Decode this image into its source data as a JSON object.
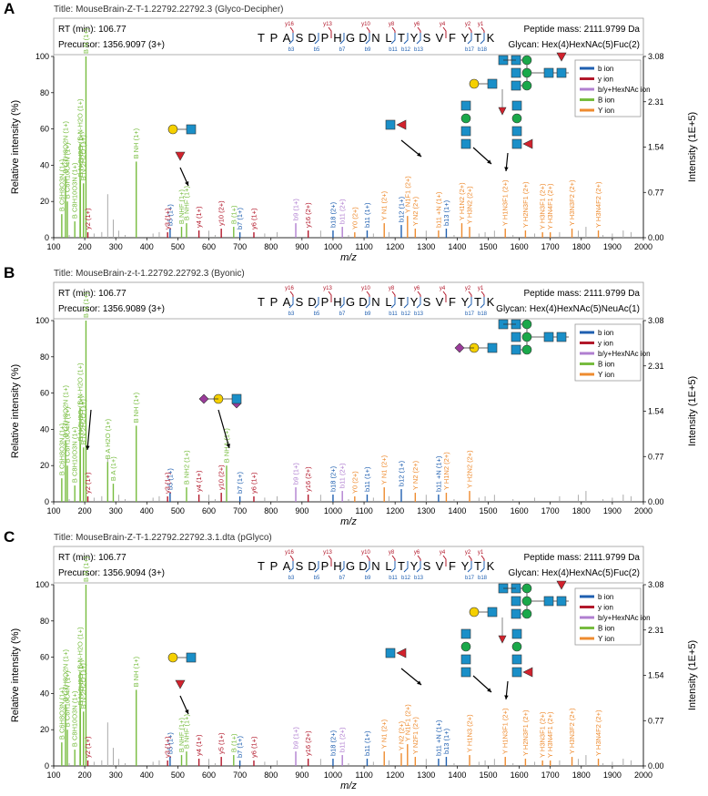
{
  "colors": {
    "b_ion": "#1f5fb0",
    "y_ion": "#b2182b",
    "by_hexnac_ion": "#b07fd0",
    "B_ion": "#77bc3f",
    "Y_ion": "#ee8b2f",
    "unmatched": "#aaaaaa",
    "gray": "#999999",
    "glcnac_square": "#1a8fc8",
    "mannose_circle": "#1aa84a",
    "galactose_circle": "#f5d000",
    "fucose_triangle": "#d2222d",
    "neuac_diamond": "#9b3b9b"
  },
  "chart_data": [
    {
      "type": "bar",
      "panel": "A",
      "title": "Title: MouseBrain-Z-T-1.22792.22792.3 (Glyco-Decipher)",
      "rt": "RT (min): 106.77",
      "precursor": "Precursor: 1356.9097 (3+)",
      "peptide_mass": "Peptide mass: 2111.9799 Da",
      "glycan": "Glycan: Hex(4)HexNAc(5)Fuc(2)",
      "sequence": [
        "T",
        "P",
        "A",
        "S",
        "D",
        "P",
        "H",
        "G",
        "D",
        "N",
        "L",
        "T",
        "Y",
        "S",
        "V",
        "F",
        "Y",
        "T",
        "K"
      ],
      "y_fragment_labels": [
        "y16",
        "y13",
        "y10",
        "y8",
        "y6",
        "y4",
        "y2",
        "y1"
      ],
      "b_fragment_labels": [
        "b3",
        "b5",
        "b7",
        "b9",
        "b11",
        "b12",
        "b13",
        "b17",
        "b18"
      ],
      "xlabel": "m/z",
      "ylabel": "Relative intensity (%)",
      "y2label": "Intensity (1E+5)",
      "xlim": [
        100,
        2000
      ],
      "ylim": [
        0,
        100
      ],
      "x_ticks": [
        100,
        200,
        300,
        400,
        500,
        600,
        700,
        800,
        900,
        1000,
        1100,
        1200,
        1300,
        1400,
        1500,
        1600,
        1700,
        1800,
        1900,
        2000
      ],
      "y_ticks": [
        0,
        20,
        40,
        60,
        80,
        100
      ],
      "y2_ticks": [
        "0.00",
        "0.77",
        "1.54",
        "2.31",
        "3.08"
      ],
      "legend": [
        "b ion",
        "y ion",
        "b/y+HexNAc ion",
        "B ion",
        "Y ion"
      ],
      "legend_position": "top-right",
      "peaks": [
        {
          "mz": 126,
          "i": 13,
          "t": "B",
          "label": "B C6H8O3N (1+)"
        },
        {
          "mz": 138,
          "i": 34,
          "t": "B",
          "label": "B C7H8O2N (1+)"
        },
        {
          "mz": 144,
          "i": 20,
          "t": "B",
          "label": "B C6H10O4N (1+)"
        },
        {
          "mz": 168,
          "i": 9,
          "t": "B",
          "label": "B C8H10O3N (1+)"
        },
        {
          "mz": 186,
          "i": 32,
          "t": "B",
          "label": "B N-2H2O (1+)"
        },
        {
          "mz": 204,
          "i": 100,
          "t": "B",
          "label": "B N (1+)"
        },
        {
          "mz": 274,
          "i": 24,
          "t": "u",
          "label": ""
        },
        {
          "mz": 292,
          "i": 10,
          "t": "u",
          "label": ""
        },
        {
          "mz": 366,
          "i": 42,
          "t": "B",
          "label": "B NH (1+)"
        },
        {
          "mz": 185,
          "i": 52,
          "t": "B",
          "label": "B N-H2O (1+)"
        },
        {
          "mz": 196,
          "i": 30,
          "t": "B",
          "label": "B N-2H2O (1+)"
        },
        {
          "mz": 210,
          "i": 3,
          "t": "y",
          "label": "y2 (1+)"
        },
        {
          "mz": 475,
          "i": 5,
          "t": "b",
          "label": "b5 (1+)"
        },
        {
          "mz": 467,
          "i": 3,
          "t": "y",
          "label": "y3 (1+)"
        },
        {
          "mz": 512,
          "i": 6,
          "t": "B",
          "label": "B NHF (1+)"
        },
        {
          "mz": 528,
          "i": 8,
          "t": "B",
          "label": "B NHF (1+)"
        },
        {
          "mz": 568,
          "i": 4,
          "t": "y",
          "label": "y4 (1+)"
        },
        {
          "mz": 640,
          "i": 5,
          "t": "y",
          "label": "y10 (2+)"
        },
        {
          "mz": 680,
          "i": 6,
          "t": "B",
          "label": "B (1+)"
        },
        {
          "mz": 700,
          "i": 3,
          "t": "b",
          "label": "b7 (1+)"
        },
        {
          "mz": 745,
          "i": 3,
          "t": "y",
          "label": "y6 (1+)"
        },
        {
          "mz": 880,
          "i": 8,
          "t": "p",
          "label": "b9 (1+)"
        },
        {
          "mz": 920,
          "i": 4,
          "t": "y",
          "label": "y16 (2+)"
        },
        {
          "mz": 1000,
          "i": 4,
          "t": "b",
          "label": "b18 (2+)"
        },
        {
          "mz": 1030,
          "i": 6,
          "t": "p",
          "label": "b11 (2+)"
        },
        {
          "mz": 1070,
          "i": 3,
          "t": "Y",
          "label": "Y0 (2+)"
        },
        {
          "mz": 1110,
          "i": 4,
          "t": "b",
          "label": "b11 (1+)"
        },
        {
          "mz": 1165,
          "i": 8,
          "t": "Y",
          "label": "Y N1 (2+)"
        },
        {
          "mz": 1220,
          "i": 7,
          "t": "b",
          "label": "b12 (1+)"
        },
        {
          "mz": 1240,
          "i": 12,
          "t": "Y",
          "label": "Y N1F1 (2+)"
        },
        {
          "mz": 1265,
          "i": 5,
          "t": "Y",
          "label": "Y N2 (2+)"
        },
        {
          "mz": 1340,
          "i": 4,
          "t": "Y",
          "label": "b11 +N (1+)"
        },
        {
          "mz": 1365,
          "i": 5,
          "t": "b",
          "label": "b13 (1+)"
        },
        {
          "mz": 1415,
          "i": 8,
          "t": "Y",
          "label": "Y H1N2 (2+)"
        },
        {
          "mz": 1440,
          "i": 6,
          "t": "Y",
          "label": "Y H3N2 (2+)"
        },
        {
          "mz": 1555,
          "i": 5,
          "t": "Y",
          "label": "Y H1N3F1 (2+)"
        },
        {
          "mz": 1620,
          "i": 4,
          "t": "Y",
          "label": "Y H2N3F1 (2+)"
        },
        {
          "mz": 1675,
          "i": 3,
          "t": "Y",
          "label": "Y H3N3F1 (2+)"
        },
        {
          "mz": 1700,
          "i": 3,
          "t": "Y",
          "label": "Y H3N4F1 (2+)"
        },
        {
          "mz": 1770,
          "i": 5,
          "t": "Y",
          "label": "Y H3N3F2 (2+)"
        },
        {
          "mz": 1855,
          "i": 4,
          "t": "Y",
          "label": "Y H3N4F2 (2+)"
        },
        {
          "mz": 1815,
          "i": 6,
          "t": "u",
          "label": ""
        },
        {
          "mz": 1935,
          "i": 4,
          "t": "u",
          "label": ""
        }
      ]
    },
    {
      "type": "bar",
      "panel": "B",
      "title": "Title: MouseBrain-z-t-1.22792.22792.3 (Byonic)",
      "rt": "RT (min): 106.77",
      "precursor": "Precursor: 1356.9089 (3+)",
      "peptide_mass": "Peptide mass: 2111.9799 Da",
      "glycan": "Glycan: Hex(4)HexNAc(5)NeuAc(1)",
      "sequence": [
        "T",
        "P",
        "A",
        "S",
        "D",
        "P",
        "H",
        "G",
        "D",
        "N",
        "L",
        "T",
        "Y",
        "S",
        "V",
        "F",
        "Y",
        "T",
        "K"
      ],
      "y_fragment_labels": [
        "y16",
        "y13",
        "y10",
        "y8",
        "y6",
        "y4",
        "y2",
        "y1"
      ],
      "b_fragment_labels": [
        "b3",
        "b5",
        "b7",
        "b9",
        "b11",
        "b12",
        "b13",
        "b17",
        "b18"
      ],
      "xlabel": "m/z",
      "ylabel": "Relative intensity (%)",
      "y2label": "Intensity (1E+5)",
      "xlim": [
        100,
        2000
      ],
      "ylim": [
        0,
        100
      ],
      "x_ticks": [
        100,
        200,
        300,
        400,
        500,
        600,
        700,
        800,
        900,
        1000,
        1100,
        1200,
        1300,
        1400,
        1500,
        1600,
        1700,
        1800,
        1900,
        2000
      ],
      "y_ticks": [
        0,
        20,
        40,
        60,
        80,
        100
      ],
      "y2_ticks": [
        "0.00",
        "0.77",
        "1.54",
        "2.31",
        "3.08"
      ],
      "legend": [
        "b ion",
        "y ion",
        "b/y+HexNAc ion",
        "B ion",
        "Y ion"
      ],
      "legend_position": "top-right",
      "peaks": [
        {
          "mz": 126,
          "i": 13,
          "t": "B",
          "label": "B C6H8O3N (1+)"
        },
        {
          "mz": 138,
          "i": 34,
          "t": "B",
          "label": "B C7H8O2N (1+)"
        },
        {
          "mz": 144,
          "i": 20,
          "t": "B",
          "label": "B C6H10O4N (1+)"
        },
        {
          "mz": 168,
          "i": 9,
          "t": "B",
          "label": "B C8H10O3N (1+)"
        },
        {
          "mz": 186,
          "i": 32,
          "t": "B",
          "label": "B N-2H2O (1+)"
        },
        {
          "mz": 204,
          "i": 100,
          "t": "B",
          "label": "B N (1+)"
        },
        {
          "mz": 274,
          "i": 24,
          "t": "u",
          "label": ""
        },
        {
          "mz": 292,
          "i": 10,
          "t": "B",
          "label": "B A (1+)"
        },
        {
          "mz": 274,
          "i": 22,
          "t": "B",
          "label": "B A H2O (1+)"
        },
        {
          "mz": 366,
          "i": 42,
          "t": "B",
          "label": "B NH (1+)"
        },
        {
          "mz": 185,
          "i": 52,
          "t": "B",
          "label": "B N-H2O (1+)"
        },
        {
          "mz": 196,
          "i": 30,
          "t": "B",
          "label": "B N-2H2O (1+)"
        },
        {
          "mz": 210,
          "i": 3,
          "t": "y",
          "label": "y2 (1+)"
        },
        {
          "mz": 475,
          "i": 5,
          "t": "b",
          "label": "b5 (1+)"
        },
        {
          "mz": 467,
          "i": 3,
          "t": "y",
          "label": "y3 (1+)"
        },
        {
          "mz": 528,
          "i": 8,
          "t": "B",
          "label": "B NH2 (1+)"
        },
        {
          "mz": 568,
          "i": 4,
          "t": "y",
          "label": "y4 (1+)"
        },
        {
          "mz": 640,
          "i": 5,
          "t": "y",
          "label": "y10 (2+)"
        },
        {
          "mz": 657,
          "i": 20,
          "t": "B",
          "label": "B NHA (1+)"
        },
        {
          "mz": 700,
          "i": 3,
          "t": "b",
          "label": "b7 (1+)"
        },
        {
          "mz": 745,
          "i": 3,
          "t": "y",
          "label": "y6 (1+)"
        },
        {
          "mz": 880,
          "i": 8,
          "t": "p",
          "label": "b9 (1+)"
        },
        {
          "mz": 920,
          "i": 4,
          "t": "y",
          "label": "y16 (2+)"
        },
        {
          "mz": 1000,
          "i": 4,
          "t": "b",
          "label": "b18 (2+)"
        },
        {
          "mz": 1030,
          "i": 6,
          "t": "p",
          "label": "b11 (2+)"
        },
        {
          "mz": 1070,
          "i": 3,
          "t": "Y",
          "label": "Y0 (2+)"
        },
        {
          "mz": 1110,
          "i": 4,
          "t": "b",
          "label": "b11 (1+)"
        },
        {
          "mz": 1165,
          "i": 8,
          "t": "Y",
          "label": "Y N1 (2+)"
        },
        {
          "mz": 1220,
          "i": 7,
          "t": "b",
          "label": "b12 (1+)"
        },
        {
          "mz": 1265,
          "i": 5,
          "t": "Y",
          "label": "Y N2 (2+)"
        },
        {
          "mz": 1340,
          "i": 4,
          "t": "b",
          "label": "b11 +N (1+)"
        },
        {
          "mz": 1365,
          "i": 5,
          "t": "Y",
          "label": "Y H1N2 (2+)"
        },
        {
          "mz": 1440,
          "i": 6,
          "t": "Y",
          "label": "Y H2N2 (2+)"
        },
        {
          "mz": 1815,
          "i": 6,
          "t": "u",
          "label": ""
        },
        {
          "mz": 1935,
          "i": 4,
          "t": "u",
          "label": ""
        }
      ]
    },
    {
      "type": "bar",
      "panel": "C",
      "title": "Title: MouseBrain-Z-T-1.22792.22792.3.1.dta (pGlyco)",
      "rt": "RT (min): 106.77",
      "precursor": "Precursor: 1356.9094 (3+)",
      "peptide_mass": "Peptide mass: 2111.9799 Da",
      "glycan": "Glycan: Hex(4)HexNAc(5)Fuc(2)",
      "sequence": [
        "T",
        "P",
        "A",
        "S",
        "D",
        "P",
        "H",
        "G",
        "D",
        "N",
        "L",
        "T",
        "Y",
        "S",
        "V",
        "F",
        "Y",
        "T",
        "K"
      ],
      "y_fragment_labels": [
        "y16",
        "y13",
        "y10",
        "y8",
        "y6",
        "y4",
        "y2",
        "y1"
      ],
      "b_fragment_labels": [
        "b3",
        "b5",
        "b7",
        "b9",
        "b11",
        "b12",
        "b13",
        "b17",
        "b18"
      ],
      "xlabel": "m/z",
      "ylabel": "Relative intensity (%)",
      "y2label": "Intensity (1E+5)",
      "xlim": [
        100,
        2000
      ],
      "ylim": [
        0,
        100
      ],
      "x_ticks": [
        100,
        200,
        300,
        400,
        500,
        600,
        700,
        800,
        900,
        1000,
        1100,
        1200,
        1300,
        1400,
        1500,
        1600,
        1700,
        1800,
        1900,
        2000
      ],
      "y_ticks": [
        0,
        20,
        40,
        60,
        80,
        100
      ],
      "y2_ticks": [
        "0.00",
        "0.77",
        "1.54",
        "2.31",
        "3.08"
      ],
      "legend": [
        "b ion",
        "y ion",
        "b/y+HexNAc ion",
        "B ion",
        "Y ion"
      ],
      "legend_position": "top-right",
      "peaks": [
        {
          "mz": 126,
          "i": 13,
          "t": "B",
          "label": "B C6H8O3N (1+)"
        },
        {
          "mz": 138,
          "i": 34,
          "t": "B",
          "label": "B C7H8O2N (1+)"
        },
        {
          "mz": 144,
          "i": 20,
          "t": "B",
          "label": "B C6H10O4N (1+)"
        },
        {
          "mz": 168,
          "i": 9,
          "t": "B",
          "label": "B C8H10O3N (1+)"
        },
        {
          "mz": 186,
          "i": 32,
          "t": "B",
          "label": "B N-2H2O (1+)"
        },
        {
          "mz": 204,
          "i": 100,
          "t": "B",
          "label": "B N (1+)"
        },
        {
          "mz": 274,
          "i": 24,
          "t": "u",
          "label": ""
        },
        {
          "mz": 292,
          "i": 10,
          "t": "u",
          "label": ""
        },
        {
          "mz": 366,
          "i": 42,
          "t": "B",
          "label": "B NH (1+)"
        },
        {
          "mz": 185,
          "i": 52,
          "t": "B",
          "label": "B N-H2O (1+)"
        },
        {
          "mz": 196,
          "i": 30,
          "t": "B",
          "label": "B N-2H2O (1+)"
        },
        {
          "mz": 210,
          "i": 3,
          "t": "y",
          "label": "y2 (1+)"
        },
        {
          "mz": 475,
          "i": 5,
          "t": "b",
          "label": "b5 (1+)"
        },
        {
          "mz": 467,
          "i": 3,
          "t": "y",
          "label": "y3 (1+)"
        },
        {
          "mz": 512,
          "i": 6,
          "t": "B",
          "label": "B NHF (1+)"
        },
        {
          "mz": 528,
          "i": 8,
          "t": "B",
          "label": "B NHF (1+)"
        },
        {
          "mz": 568,
          "i": 4,
          "t": "y",
          "label": "y4 (1+)"
        },
        {
          "mz": 640,
          "i": 5,
          "t": "y",
          "label": "y5 (1+)"
        },
        {
          "mz": 680,
          "i": 6,
          "t": "B",
          "label": "B (1+)"
        },
        {
          "mz": 700,
          "i": 3,
          "t": "b",
          "label": "b7 (1+)"
        },
        {
          "mz": 745,
          "i": 3,
          "t": "y",
          "label": "y6 (1+)"
        },
        {
          "mz": 880,
          "i": 8,
          "t": "p",
          "label": "b9 (1+)"
        },
        {
          "mz": 920,
          "i": 4,
          "t": "y",
          "label": "y16 (2+)"
        },
        {
          "mz": 1000,
          "i": 4,
          "t": "b",
          "label": "b18 (2+)"
        },
        {
          "mz": 1030,
          "i": 6,
          "t": "p",
          "label": "b11 (2+)"
        },
        {
          "mz": 1110,
          "i": 4,
          "t": "b",
          "label": "b11 (1+)"
        },
        {
          "mz": 1165,
          "i": 8,
          "t": "Y",
          "label": "Y N1 (2+)"
        },
        {
          "mz": 1220,
          "i": 7,
          "t": "Y",
          "label": "Y N2 (2+)"
        },
        {
          "mz": 1240,
          "i": 12,
          "t": "Y",
          "label": "Y N1F1 (2+)"
        },
        {
          "mz": 1265,
          "i": 5,
          "t": "Y",
          "label": "Y N2F1 (2+)"
        },
        {
          "mz": 1340,
          "i": 4,
          "t": "b",
          "label": "b11 +N (1+)"
        },
        {
          "mz": 1365,
          "i": 5,
          "t": "b",
          "label": "b13 (1+)"
        },
        {
          "mz": 1440,
          "i": 6,
          "t": "Y",
          "label": "Y H1N3 (2+)"
        },
        {
          "mz": 1555,
          "i": 5,
          "t": "Y",
          "label": "Y H1N3F1 (2+)"
        },
        {
          "mz": 1620,
          "i": 4,
          "t": "Y",
          "label": "Y H2N3F1 (2+)"
        },
        {
          "mz": 1675,
          "i": 3,
          "t": "Y",
          "label": "Y H3N3F1 (2+)"
        },
        {
          "mz": 1700,
          "i": 3,
          "t": "Y",
          "label": "Y H3N4F1 (2+)"
        },
        {
          "mz": 1770,
          "i": 5,
          "t": "Y",
          "label": "Y H3N3F2 (2+)"
        },
        {
          "mz": 1855,
          "i": 4,
          "t": "Y",
          "label": "Y H3N4F2 (2+)"
        },
        {
          "mz": 1815,
          "i": 6,
          "t": "u",
          "label": ""
        },
        {
          "mz": 1935,
          "i": 4,
          "t": "u",
          "label": ""
        }
      ]
    }
  ]
}
